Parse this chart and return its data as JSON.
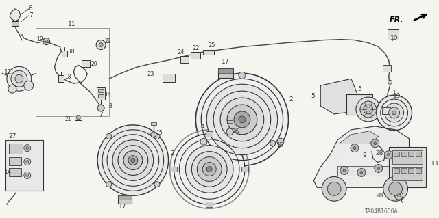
{
  "bg_color": "#f5f5f0",
  "diagram_color": "#333333",
  "line_color": "#444444",
  "fig_width": 6.4,
  "fig_height": 3.19,
  "dpi": 100,
  "watermark": "TA04B1600A",
  "fr_label": "FR."
}
